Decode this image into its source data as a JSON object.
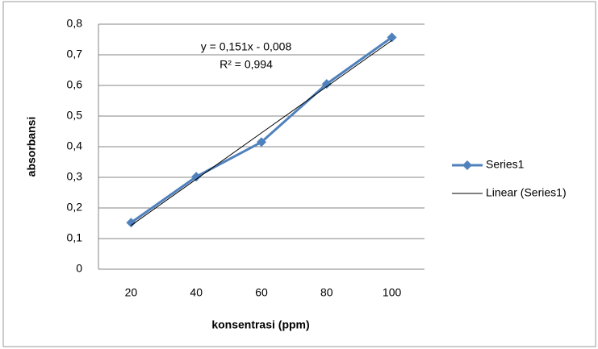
{
  "chart_data": {
    "type": "line",
    "x_label": "konsentrasi (ppm)",
    "y_label": "absorbansi",
    "categories": [
      "20",
      "40",
      "60",
      "80",
      "100"
    ],
    "series": [
      {
        "name": "Series1",
        "color": "#4f81bd",
        "values": [
          0.152,
          0.302,
          0.415,
          0.605,
          0.757
        ]
      },
      {
        "name": "Linear (Series1)",
        "color": "#000000",
        "values": [
          0.143,
          0.294,
          0.445,
          0.596,
          0.747
        ]
      }
    ],
    "annotations": [
      "y = 0,151x - 0,008",
      "R² = 0,994"
    ],
    "ylim": [
      0,
      0.8
    ],
    "yticks": [
      0,
      {
        "value": 0.1,
        "label": "0,1"
      },
      {
        "value": 0.2,
        "label": "0,2"
      },
      {
        "value": 0.3,
        "label": "0,3"
      },
      {
        "value": 0.4,
        "label": "0,4"
      },
      {
        "value": 0.5,
        "label": "0,5"
      },
      {
        "value": 0.6,
        "label": "0,6"
      },
      {
        "value": 0.7,
        "label": "0,7"
      },
      {
        "value": 0.8,
        "label": "0,8"
      }
    ],
    "grid": true,
    "legend": "right"
  }
}
